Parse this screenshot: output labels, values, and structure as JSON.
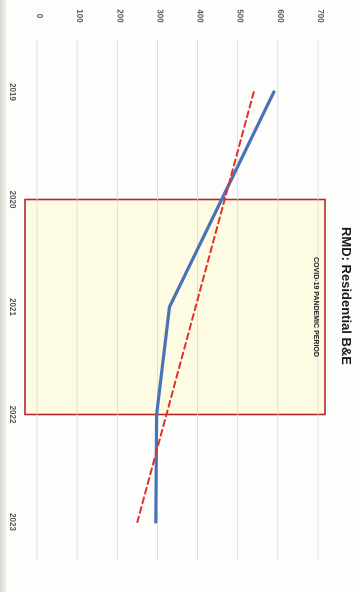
{
  "chart_data": {
    "type": "line",
    "title": "RMD: Residential B&E",
    "xlabel": "",
    "ylabel": "",
    "x": [
      2019,
      2020,
      2021,
      2022,
      2023
    ],
    "y_ticks": [
      0,
      100,
      200,
      300,
      400,
      500,
      600,
      700
    ],
    "ylim": [
      0,
      700
    ],
    "xlim": [
      2019,
      2023
    ],
    "grid": true,
    "series": [
      {
        "values": [
          {
            "x": 2019.0,
            "y": 590
          },
          {
            "x": 2020.0,
            "y": 460
          },
          {
            "x": 2021.0,
            "y": 330
          },
          {
            "x": 2022.0,
            "y": 298
          },
          {
            "x": 2023.0,
            "y": 296
          }
        ],
        "color": "#4a73b5",
        "style": "solid"
      },
      {
        "values": [
          {
            "x": 2019.0,
            "y": 540
          },
          {
            "x": 2023.0,
            "y": 250
          }
        ],
        "color": "#e0312f",
        "style": "dashed"
      }
    ],
    "annotations": [
      {
        "text": "COVID-19 PANDEMIC PERIOD",
        "x_from": 2020.0,
        "x_to": 2022.0,
        "y_from": 0,
        "y_to": 700,
        "fill": "#fdfbe2",
        "stroke": "#b5262a"
      }
    ],
    "orientation": "rotated-90-clockwise"
  }
}
